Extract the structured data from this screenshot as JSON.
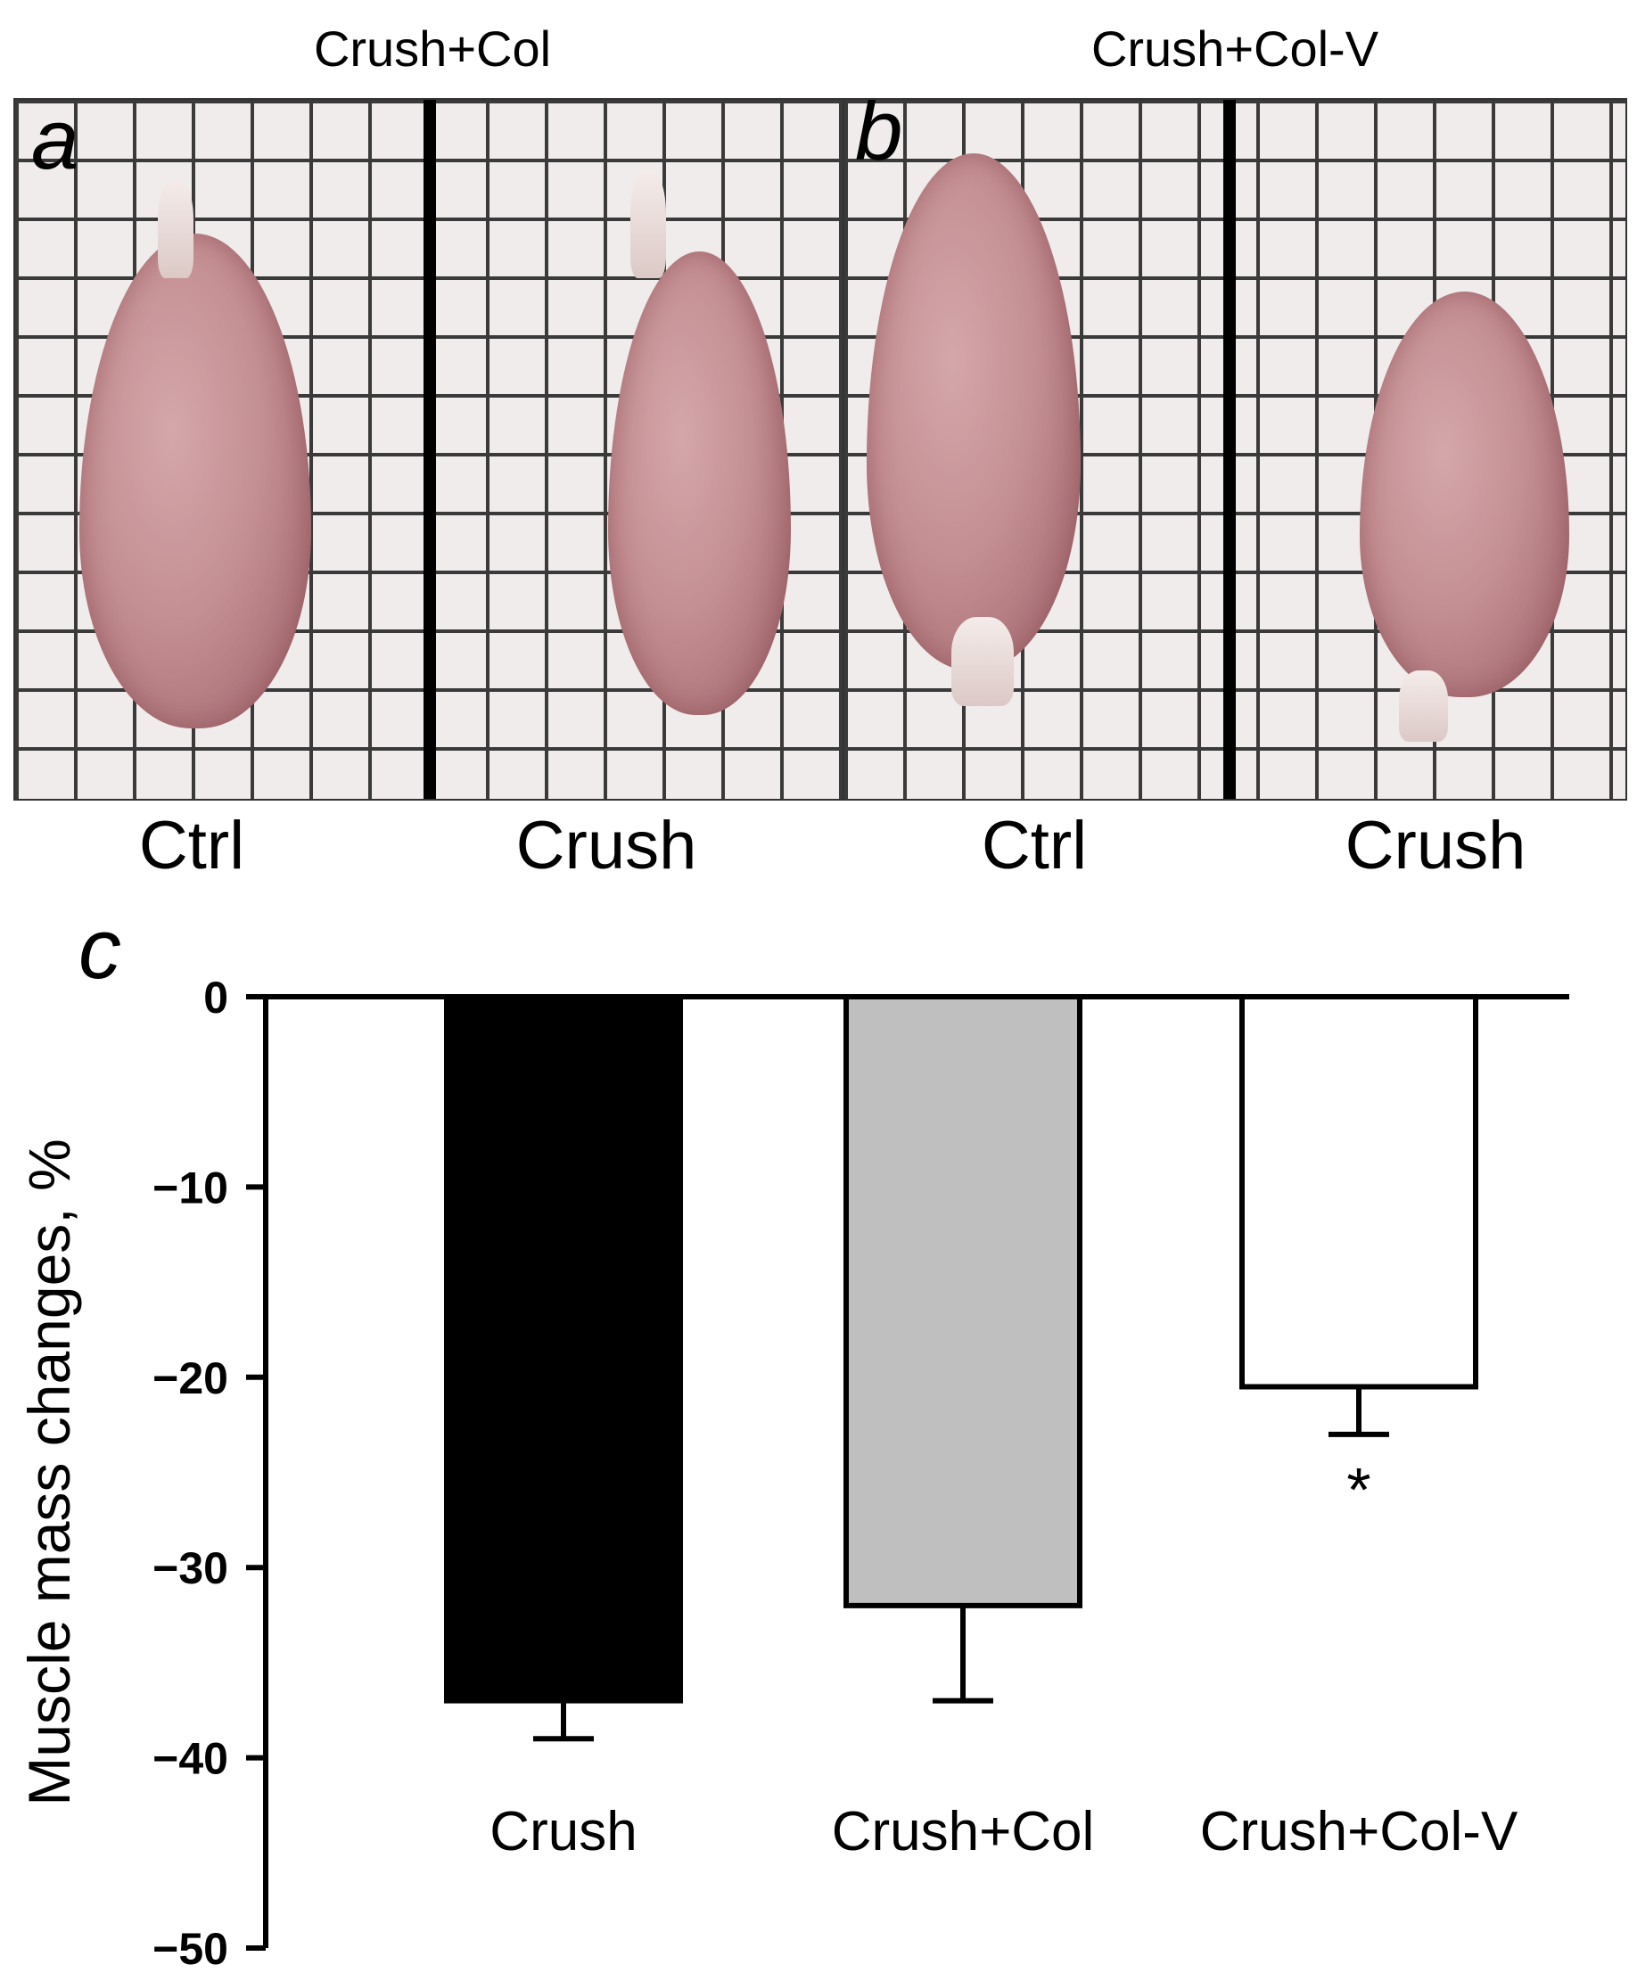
{
  "panels": {
    "a": {
      "letter": "a",
      "title": "Crush+Col",
      "labels": [
        "Ctrl",
        "Crush"
      ]
    },
    "b": {
      "letter": "b",
      "title": "Crush+Col-V",
      "labels": [
        "Ctrl",
        "Crush"
      ]
    }
  },
  "chart_letter": "c",
  "chart_data": {
    "type": "bar",
    "categories": [
      "Crush",
      "Crush+Col",
      "Crush+Col-V"
    ],
    "values": [
      -37,
      -32,
      -20.5
    ],
    "errors": [
      2,
      5,
      2.5
    ],
    "bar_colors": [
      "#000000",
      "#bfbfbf",
      "#ffffff"
    ],
    "ylabel": "Muscle mass changes, %",
    "ylim": [
      -50,
      0
    ],
    "yticks": [
      0,
      -10,
      -20,
      -30,
      -40,
      -50
    ],
    "ytick_labels": [
      "0",
      "−10",
      "−20",
      "−30",
      "−40",
      "−50"
    ],
    "annotations": [
      {
        "category": "Crush+Col-V",
        "text": "*"
      }
    ]
  }
}
